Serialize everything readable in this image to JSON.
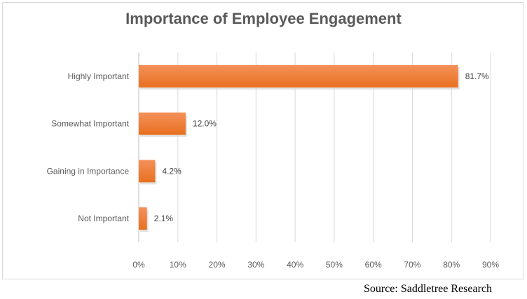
{
  "chart_data": {
    "type": "bar",
    "orientation": "horizontal",
    "title": "Importance of Employee Engagement",
    "categories": [
      "Highly Important",
      "Somewhat Important",
      "Gaining in Importance",
      "Not Important"
    ],
    "values": [
      81.7,
      12.0,
      4.2,
      2.1
    ],
    "data_labels": [
      "81.7%",
      "12.0%",
      "4.2%",
      "2.1%"
    ],
    "xlim": [
      0,
      90
    ],
    "x_ticks": [
      "0%",
      "10%",
      "20%",
      "30%",
      "40%",
      "50%",
      "60%",
      "70%",
      "80%",
      "90%"
    ],
    "grid": true,
    "bar_color": "#ed7d31",
    "xlabel": "",
    "ylabel": ""
  },
  "source": "Source: Saddletree Research"
}
